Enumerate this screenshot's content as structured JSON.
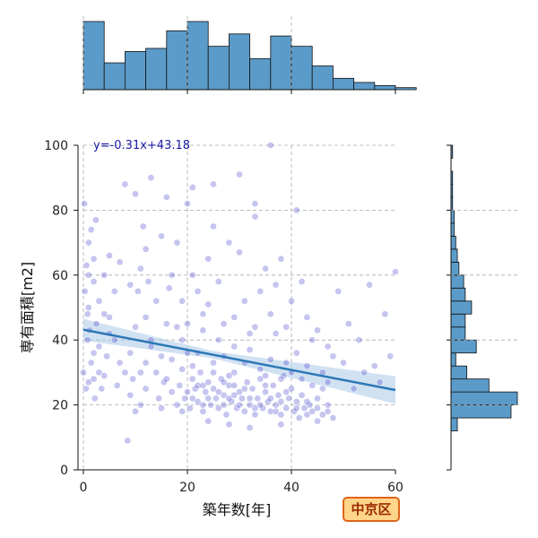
{
  "chart_data": {
    "type": "scatter",
    "xlabel": "築年数[年]",
    "ylabel": "専有面積[m2]",
    "xlim": [
      0,
      60
    ],
    "ylim": [
      0,
      100
    ],
    "xticks": [
      "0",
      "20",
      "40",
      "60"
    ],
    "yticks": [
      "0",
      "20",
      "40",
      "60",
      "80",
      "100"
    ],
    "grid": true,
    "regression": {
      "label": "y=-0.31x+43.18",
      "slope": -0.31,
      "intercept": 43.18,
      "x_range": [
        0,
        60
      ]
    },
    "badge": "中京区",
    "colors": {
      "points": "#2f2fc8",
      "regression": "#2a78b5",
      "band": "#a9c8e8",
      "hist": "#5b9bc9",
      "badge_fill": "#ffd58a",
      "badge_border": "#e0641a"
    },
    "x_histogram": {
      "bin_start": 0,
      "bin_width": 4,
      "counts": [
        66,
        26,
        37,
        40,
        57,
        66,
        42,
        54,
        30,
        52,
        42,
        23,
        11,
        7,
        4,
        2
      ]
    },
    "y_histogram": {
      "bin_start": 12,
      "bin_width": 4,
      "counts": [
        4,
        38,
        42,
        24,
        10,
        3,
        16,
        9,
        9,
        13,
        9,
        8,
        5,
        4,
        3,
        2,
        2,
        1,
        1,
        1,
        0,
        1
      ]
    },
    "points": [
      [
        0.5,
        25
      ],
      [
        1,
        27
      ],
      [
        0,
        30
      ],
      [
        1.5,
        33
      ],
      [
        2,
        28
      ],
      [
        0.8,
        40
      ],
      [
        1.2,
        43
      ],
      [
        0.3,
        55
      ],
      [
        1,
        60
      ],
      [
        0.6,
        63
      ],
      [
        2,
        65
      ],
      [
        1.5,
        74
      ],
      [
        0.2,
        82
      ],
      [
        2.4,
        77
      ],
      [
        1,
        50
      ],
      [
        0.8,
        48
      ],
      [
        2,
        36
      ],
      [
        3,
        30
      ],
      [
        3.5,
        25
      ],
      [
        4,
        29
      ],
      [
        2.5,
        45
      ],
      [
        3,
        52
      ],
      [
        4,
        60
      ],
      [
        5,
        66
      ],
      [
        2.2,
        22
      ],
      [
        4.5,
        35
      ],
      [
        5,
        47
      ],
      [
        6,
        40
      ],
      [
        6.5,
        26
      ],
      [
        7,
        33
      ],
      [
        8,
        30
      ],
      [
        9,
        36
      ],
      [
        9.5,
        28
      ],
      [
        8.5,
        9
      ],
      [
        8,
        88
      ],
      [
        10,
        44
      ],
      [
        10.5,
        55
      ],
      [
        11,
        62
      ],
      [
        11.5,
        75
      ],
      [
        12,
        68
      ],
      [
        10,
        85
      ],
      [
        13,
        90
      ],
      [
        12.5,
        58
      ],
      [
        13,
        40
      ],
      [
        14,
        30
      ],
      [
        14.5,
        22
      ],
      [
        15,
        35
      ],
      [
        15.5,
        27
      ],
      [
        16,
        45
      ],
      [
        16.5,
        56
      ],
      [
        12,
        25
      ],
      [
        11,
        30
      ],
      [
        17,
        24
      ],
      [
        18,
        20
      ],
      [
        18.5,
        26
      ],
      [
        19,
        31
      ],
      [
        19.5,
        22
      ],
      [
        20,
        36
      ],
      [
        20.5,
        19
      ],
      [
        21,
        28
      ],
      [
        21.5,
        25
      ],
      [
        22,
        21
      ],
      [
        22.5,
        30
      ],
      [
        23,
        18
      ],
      [
        23.5,
        24
      ],
      [
        24,
        27
      ],
      [
        24.5,
        20
      ],
      [
        25,
        33
      ],
      [
        25.5,
        22
      ],
      [
        26,
        19
      ],
      [
        26.5,
        28
      ],
      [
        27,
        23
      ],
      [
        27.5,
        17
      ],
      [
        28,
        26
      ],
      [
        28.5,
        21
      ],
      [
        29,
        30
      ],
      [
        29.5,
        19
      ],
      [
        30,
        24
      ],
      [
        30.5,
        22
      ],
      [
        31,
        18
      ],
      [
        31.5,
        27
      ],
      [
        32,
        20
      ],
      [
        32.5,
        25
      ],
      [
        33,
        17
      ],
      [
        33.5,
        22
      ],
      [
        34,
        28
      ],
      [
        34.5,
        19
      ],
      [
        35,
        24
      ],
      [
        35.5,
        21
      ],
      [
        36,
        18
      ],
      [
        36.5,
        26
      ],
      [
        37,
        20
      ],
      [
        37.5,
        23
      ],
      [
        38,
        17
      ],
      [
        38.5,
        29
      ],
      [
        39,
        19
      ],
      [
        39.5,
        22
      ],
      [
        40,
        25
      ],
      [
        40.5,
        18
      ],
      [
        41,
        21
      ],
      [
        41.5,
        16
      ],
      [
        42,
        23
      ],
      [
        42.5,
        19
      ],
      [
        43,
        17
      ],
      [
        43.5,
        20
      ],
      [
        44,
        18
      ],
      [
        45,
        22
      ],
      [
        46,
        17
      ],
      [
        47,
        20
      ],
      [
        48,
        16
      ],
      [
        19,
        40
      ],
      [
        20,
        45
      ],
      [
        21,
        60
      ],
      [
        22,
        55
      ],
      [
        18,
        70
      ],
      [
        20,
        82
      ],
      [
        21,
        87
      ],
      [
        23,
        48
      ],
      [
        24,
        65
      ],
      [
        25,
        75
      ],
      [
        26,
        58
      ],
      [
        27,
        45
      ],
      [
        28,
        70
      ],
      [
        29,
        38
      ],
      [
        30,
        67
      ],
      [
        31,
        52
      ],
      [
        32,
        42
      ],
      [
        33,
        78
      ],
      [
        34,
        55
      ],
      [
        35,
        62
      ],
      [
        36,
        48
      ],
      [
        37,
        57
      ],
      [
        38,
        65
      ],
      [
        39,
        44
      ],
      [
        40,
        52
      ],
      [
        41,
        36
      ],
      [
        42,
        58
      ],
      [
        43,
        47
      ],
      [
        44,
        40
      ],
      [
        45,
        43
      ],
      [
        46,
        30
      ],
      [
        47,
        38
      ],
      [
        48,
        35
      ],
      [
        49,
        55
      ],
      [
        50,
        33
      ],
      [
        51,
        45
      ],
      [
        52,
        25
      ],
      [
        53,
        40
      ],
      [
        54,
        30
      ],
      [
        55,
        57
      ],
      [
        56,
        32
      ],
      [
        57,
        27
      ],
      [
        58,
        48
      ],
      [
        59,
        35
      ],
      [
        60,
        61
      ],
      [
        36,
        100
      ],
      [
        41,
        80
      ],
      [
        33,
        82
      ],
      [
        25,
        88
      ],
      [
        30,
        91
      ],
      [
        15,
        72
      ],
      [
        16,
        84
      ],
      [
        17,
        60
      ],
      [
        14,
        52
      ],
      [
        12,
        47
      ],
      [
        13,
        38
      ],
      [
        9,
        57
      ],
      [
        7,
        64
      ],
      [
        6,
        55
      ],
      [
        5,
        42
      ],
      [
        3,
        38
      ],
      [
        4,
        48
      ],
      [
        2,
        58
      ],
      [
        1,
        70
      ],
      [
        11,
        20
      ],
      [
        12,
        33
      ],
      [
        10,
        18
      ],
      [
        9,
        23
      ],
      [
        15,
        19
      ],
      [
        16,
        28
      ],
      [
        17,
        34
      ],
      [
        18,
        44
      ],
      [
        19,
        52
      ],
      [
        22,
        36
      ],
      [
        23,
        43
      ],
      [
        24,
        51
      ],
      [
        26,
        40
      ],
      [
        27,
        35
      ],
      [
        28,
        29
      ],
      [
        29,
        47
      ],
      [
        31,
        33
      ],
      [
        32,
        37
      ],
      [
        33,
        44
      ],
      [
        34,
        31
      ],
      [
        35,
        29
      ],
      [
        36,
        34
      ],
      [
        37,
        42
      ],
      [
        38,
        28
      ],
      [
        39,
        33
      ],
      [
        40,
        30
      ],
      [
        42,
        28
      ],
      [
        43,
        32
      ],
      [
        44,
        26
      ],
      [
        45,
        15
      ],
      [
        46,
        25
      ],
      [
        47,
        27
      ],
      [
        24,
        15
      ],
      [
        28,
        14
      ],
      [
        32,
        13
      ],
      [
        38,
        14
      ],
      [
        20,
        24
      ],
      [
        22,
        26
      ],
      [
        24,
        22
      ],
      [
        26,
        24
      ],
      [
        28,
        22
      ],
      [
        30,
        20
      ],
      [
        32,
        22
      ],
      [
        34,
        20
      ],
      [
        36,
        22
      ],
      [
        38,
        21
      ],
      [
        21,
        22
      ],
      [
        23,
        26
      ],
      [
        25,
        25
      ],
      [
        27,
        20
      ],
      [
        29,
        23
      ],
      [
        31,
        25
      ],
      [
        33,
        19
      ],
      [
        35,
        26
      ],
      [
        37,
        18
      ],
      [
        39,
        24
      ],
      [
        41,
        19
      ],
      [
        43,
        21
      ],
      [
        45,
        19
      ],
      [
        47,
        18
      ],
      [
        19,
        18
      ],
      [
        21,
        32
      ],
      [
        23,
        20
      ],
      [
        25,
        30
      ],
      [
        27,
        27
      ],
      [
        29,
        26
      ]
    ]
  }
}
